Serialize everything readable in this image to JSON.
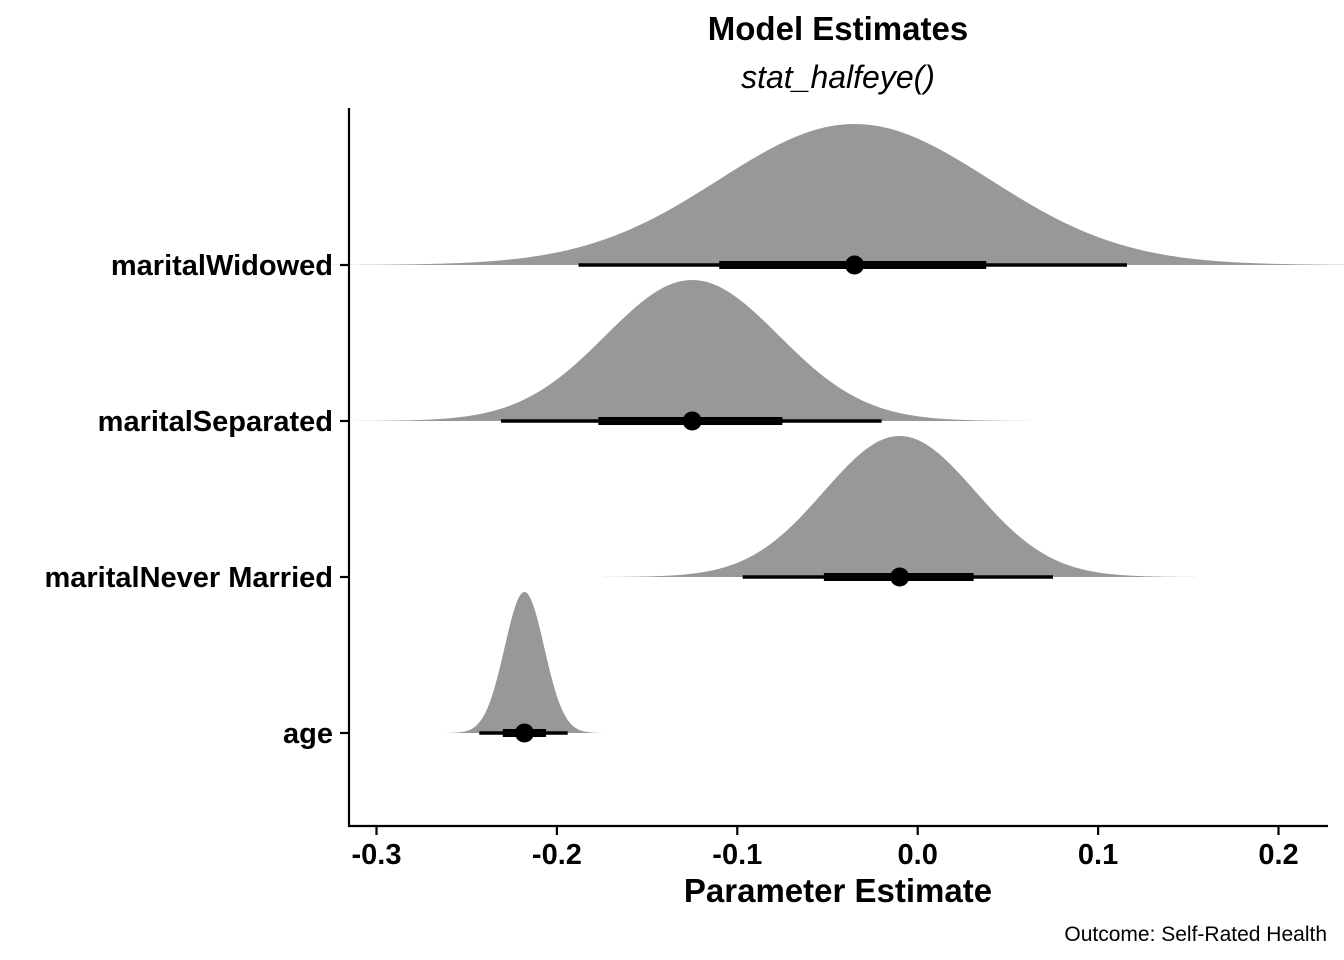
{
  "chart_data": {
    "type": "halfeye",
    "title": "Model Estimates",
    "subtitle": "stat_halfeye()",
    "xlabel": "Parameter Estimate",
    "ylabel": "",
    "caption": "Outcome: Self-Rated Health",
    "xlim": [
      -0.315,
      0.225
    ],
    "x_ticks": [
      -0.3,
      -0.2,
      -0.1,
      0.0,
      0.1,
      0.2
    ],
    "x_tick_labels": [
      "-0.3",
      "-0.2",
      "-0.1",
      "0.0",
      "0.1",
      "0.2"
    ],
    "grid": false,
    "legend": "none",
    "density_color": "#989898",
    "point_color": "#000000",
    "series": [
      {
        "term": "maritalWidowed",
        "median": -0.035,
        "sd": 0.075,
        "ci66": [
          -0.11,
          0.038
        ],
        "ci95": [
          -0.188,
          0.116
        ]
      },
      {
        "term": "maritalSeparated",
        "median": -0.125,
        "sd": 0.048,
        "ci66": [
          -0.177,
          -0.075
        ],
        "ci95": [
          -0.231,
          -0.02
        ]
      },
      {
        "term": "maritalNever Married",
        "median": -0.01,
        "sd": 0.042,
        "ci66": [
          -0.052,
          0.031
        ],
        "ci95": [
          -0.097,
          0.075
        ]
      },
      {
        "term": "age",
        "median": -0.218,
        "sd": 0.011,
        "ci66": [
          -0.23,
          -0.206
        ],
        "ci95": [
          -0.243,
          -0.194
        ]
      }
    ]
  }
}
